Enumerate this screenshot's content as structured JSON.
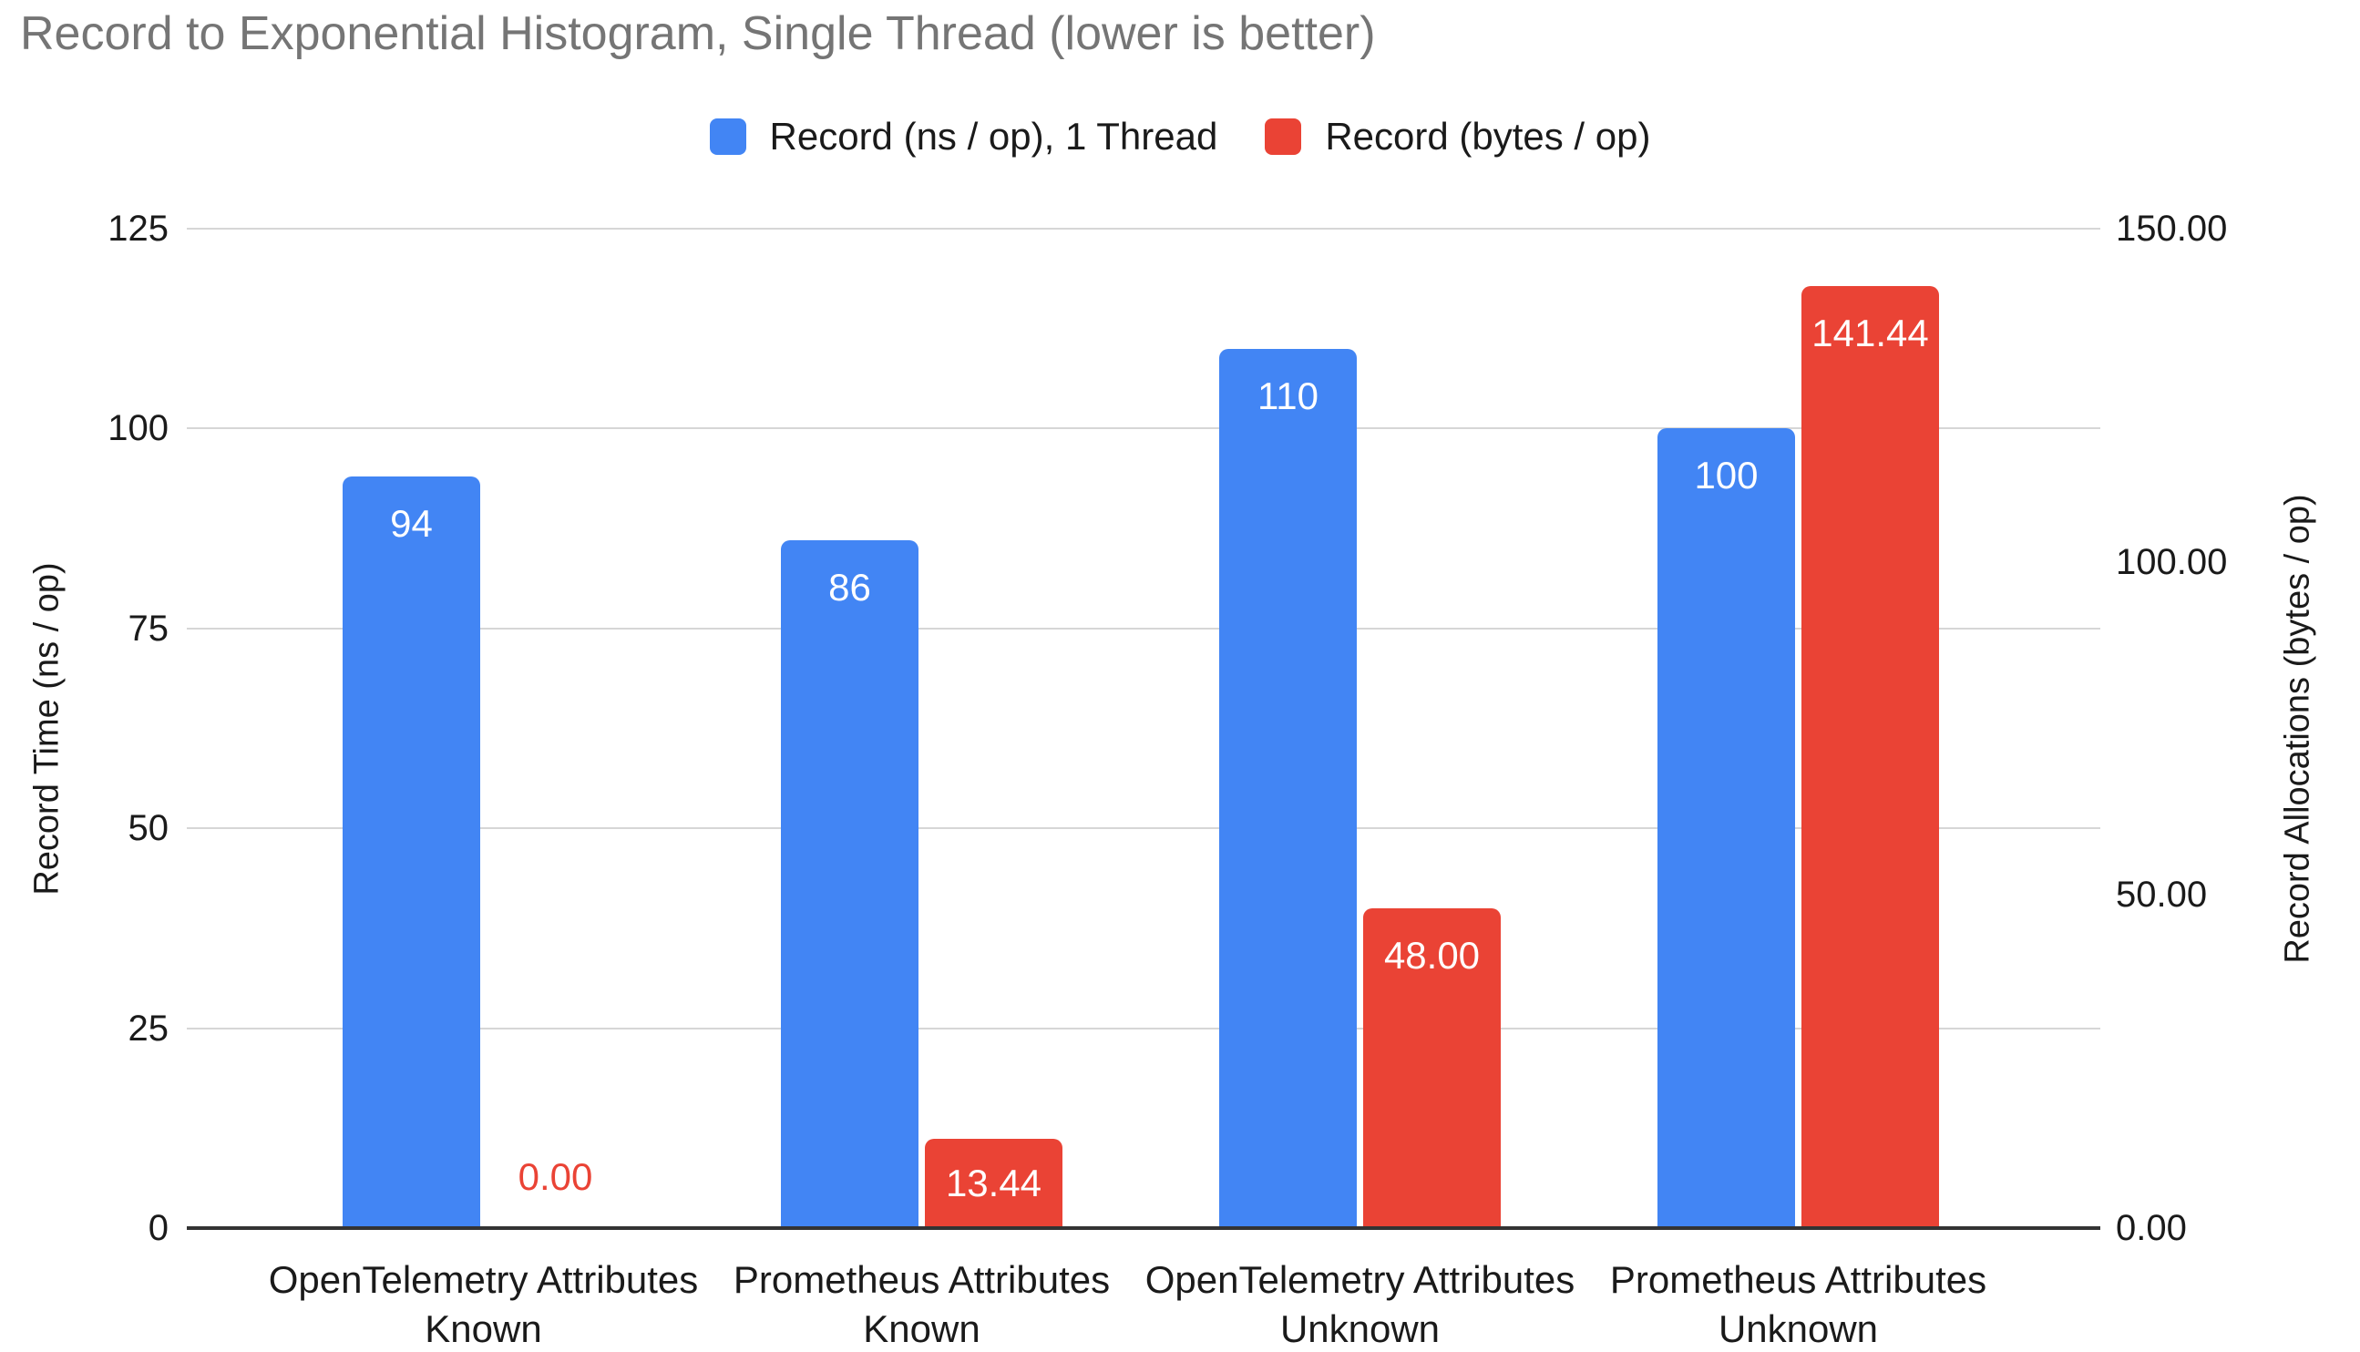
{
  "title": "Record to Exponential Histogram, Single Thread (lower is better)",
  "legend": [
    {
      "label": "Record (ns / op), 1 Thread",
      "color": "#4285F4"
    },
    {
      "label": "Record (bytes / op)",
      "color": "#EA4335"
    }
  ],
  "colors": {
    "series_blue": "#4285F4",
    "series_red": "#EA4335",
    "title_text": "#757575",
    "axis_text": "#1a1a1a",
    "gridline": "#d6d6d6",
    "baseline": "#333333",
    "background": "#ffffff",
    "bar_label_inside": "#ffffff"
  },
  "chart_data": {
    "type": "bar",
    "title": "Record to Exponential Histogram, Single Thread (lower is better)",
    "categories": [
      "OpenTelemetry Attributes\nKnown",
      "Prometheus Attributes\nKnown",
      "OpenTelemetry Attributes\nUnknown",
      "Prometheus Attributes\nUnknown"
    ],
    "series": [
      {
        "name": "Record (ns / op), 1 Thread",
        "axis": "left",
        "color": "#4285F4",
        "values": [
          94,
          86,
          110,
          100
        ],
        "labels": [
          "94",
          "86",
          "110",
          "100"
        ]
      },
      {
        "name": "Record (bytes / op)",
        "axis": "right",
        "color": "#EA4335",
        "values": [
          0,
          13.44,
          48,
          141.44
        ],
        "labels": [
          "0.00",
          "13.44",
          "48.00",
          "141.44"
        ]
      }
    ],
    "left_axis": {
      "title": "Record Time (ns / op)",
      "min": 0,
      "max": 125,
      "ticks": [
        0,
        25,
        50,
        75,
        100,
        125
      ],
      "tick_labels": [
        "0",
        "25",
        "50",
        "75",
        "100",
        "125"
      ]
    },
    "right_axis": {
      "title": "Record Allocations (bytes / op)",
      "min": 0,
      "max": 150,
      "ticks": [
        0,
        50,
        100,
        150
      ],
      "tick_labels": [
        "0.00",
        "50.00",
        "100.00",
        "150.00"
      ]
    },
    "grid": true,
    "legend_position": "top"
  }
}
